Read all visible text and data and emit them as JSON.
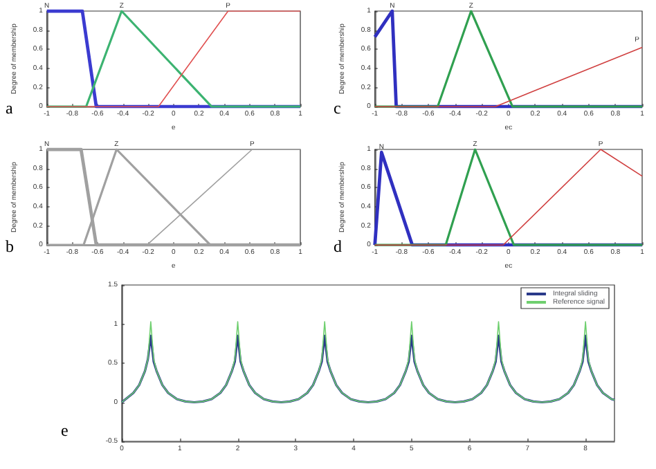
{
  "chart_data": [
    {
      "type": "line",
      "xlabel": "e",
      "ylabel": "Degree of membership",
      "annotations": [
        "a"
      ],
      "xlim": [
        -1,
        1
      ],
      "ylim": [
        0,
        1
      ],
      "xticks": [
        -1,
        -0.8,
        -0.6,
        -0.4,
        -0.2,
        0,
        0.2,
        0.4,
        0.6,
        0.8,
        1
      ],
      "yticks": [
        0,
        0.2,
        0.4,
        0.6,
        0.8,
        1
      ],
      "grid": false,
      "legend": false,
      "marker": "none",
      "line_style": "solid",
      "series": [
        {
          "name": "N",
          "color": "#3b3bd0",
          "x": [
            -1,
            -0.72,
            -0.61,
            1
          ],
          "values": [
            1,
            1,
            0,
            0
          ]
        },
        {
          "name": "Z",
          "color": "#3cb371",
          "x": [
            -1,
            -0.69,
            -0.41,
            0.3,
            1
          ],
          "values": [
            0,
            0,
            1,
            0,
            0
          ]
        },
        {
          "name": "P",
          "color": "#e05050",
          "x": [
            -1,
            -0.12,
            0.43,
            1
          ],
          "values": [
            0,
            0,
            1,
            1
          ]
        }
      ]
    },
    {
      "type": "line",
      "xlabel": "e",
      "ylabel": "Degree of membership",
      "annotations": [
        "b"
      ],
      "xlim": [
        -1,
        1
      ],
      "ylim": [
        0,
        1
      ],
      "xticks": [
        -1,
        -0.8,
        -0.6,
        -0.4,
        -0.2,
        0,
        0.2,
        0.4,
        0.6,
        0.8,
        1
      ],
      "yticks": [
        0,
        0.2,
        0.4,
        0.6,
        0.8,
        1
      ],
      "grid": false,
      "legend": false,
      "marker": "none",
      "line_style": "solid",
      "series": [
        {
          "name": "N",
          "color": "#a0a0a0",
          "x": [
            -1,
            -0.73,
            -0.61,
            1
          ],
          "values": [
            1,
            1,
            0,
            0
          ]
        },
        {
          "name": "Z",
          "color": "#a0a0a0",
          "x": [
            -1,
            -0.71,
            -0.45,
            0.29,
            1
          ],
          "values": [
            0,
            0,
            1,
            0,
            0
          ]
        },
        {
          "name": "P",
          "color": "#a0a0a0",
          "x": [
            -1,
            -0.21,
            0.62,
            1
          ],
          "values": [
            0,
            0,
            1,
            1
          ]
        }
      ]
    },
    {
      "type": "line",
      "xlabel": "ec",
      "ylabel": "Degree of membership",
      "annotations": [
        "c"
      ],
      "xlim": [
        -1,
        1
      ],
      "ylim": [
        0,
        1
      ],
      "xticks": [
        -1,
        -0.8,
        -0.6,
        -0.4,
        -0.2,
        0,
        0.2,
        0.4,
        0.6,
        0.8,
        1
      ],
      "yticks": [
        0,
        0.2,
        0.4,
        0.6,
        0.8,
        1
      ],
      "grid": false,
      "legend": false,
      "marker": "none",
      "line_style": "solid",
      "series": [
        {
          "name": "N",
          "color": "#3030c0",
          "x": [
            -1,
            -0.87,
            -0.84,
            1
          ],
          "values": [
            0.73,
            1,
            0,
            0
          ]
        },
        {
          "name": "Z",
          "color": "#30a050",
          "x": [
            -1,
            -0.53,
            -0.28,
            0.03,
            1
          ],
          "values": [
            0,
            0,
            1,
            0,
            0
          ]
        },
        {
          "name": "P",
          "color": "#d04040",
          "x": [
            -1,
            -0.1,
            1
          ],
          "values": [
            0,
            0,
            0.62
          ]
        }
      ]
    },
    {
      "type": "line",
      "xlabel": "ec",
      "ylabel": "Degree of membership",
      "annotations": [
        "d"
      ],
      "xlim": [
        -1,
        1
      ],
      "ylim": [
        0,
        1
      ],
      "xticks": [
        -1,
        -0.8,
        -0.6,
        -0.4,
        -0.2,
        0,
        0.2,
        0.4,
        0.6,
        0.8,
        1
      ],
      "yticks": [
        0,
        0.2,
        0.4,
        0.6,
        0.8,
        1
      ],
      "grid": false,
      "legend": false,
      "marker": "none",
      "line_style": "solid",
      "series": [
        {
          "name": "N",
          "color": "#3030c0",
          "x": [
            -1,
            -0.95,
            -0.72,
            1
          ],
          "values": [
            0,
            0.97,
            0,
            0
          ]
        },
        {
          "name": "Z",
          "color": "#30a050",
          "x": [
            -1,
            -0.47,
            -0.25,
            0.04,
            1
          ],
          "values": [
            0,
            0,
            1,
            0,
            0
          ]
        },
        {
          "name": "P",
          "color": "#d04040",
          "x": [
            -1,
            -0.04,
            0.69,
            1
          ],
          "values": [
            0,
            0,
            1,
            0.72
          ]
        }
      ]
    },
    {
      "type": "line",
      "annotations": [
        "e"
      ],
      "xlim": [
        0,
        8.5
      ],
      "ylim": [
        -0.5,
        1.5
      ],
      "xticks": [
        0,
        1,
        2,
        3,
        4,
        5,
        6,
        7,
        8
      ],
      "yticks": [
        -0.5,
        0,
        0.5,
        1,
        1.5
      ],
      "grid": false,
      "legend": "top right",
      "marker": "none",
      "line_style": "solid",
      "x": [
        0,
        0.2,
        0.3,
        0.4,
        0.45,
        0.5,
        0.55,
        0.6,
        0.7,
        0.8,
        0.95,
        1.1,
        1.25,
        1.4,
        1.55,
        1.7,
        1.8,
        1.9,
        1.95,
        2,
        2.05,
        2.1,
        2.2,
        2.3,
        2.45,
        2.6,
        2.75,
        2.9,
        3.05,
        3.2,
        3.3,
        3.4,
        3.45,
        3.5,
        3.55,
        3.6,
        3.7,
        3.8,
        3.95,
        4.1,
        4.25,
        4.4,
        4.55,
        4.7,
        4.8,
        4.9,
        4.95,
        5,
        5.05,
        5.1,
        5.2,
        5.3,
        5.45,
        5.6,
        5.75,
        5.9,
        6.05,
        6.2,
        6.3,
        6.4,
        6.45,
        6.5,
        6.55,
        6.6,
        6.7,
        6.8,
        6.95,
        7.1,
        7.25,
        7.4,
        7.55,
        7.7,
        7.8,
        7.9,
        7.95,
        8,
        8.05,
        8.1,
        8.2,
        8.3,
        8.45,
        8.5
      ],
      "series": [
        {
          "name": "Integral sliding",
          "color": "#2a3a8a",
          "values": [
            0,
            0.12,
            0.22,
            0.4,
            0.55,
            0.85,
            0.52,
            0.4,
            0.22,
            0.12,
            0.04,
            0.01,
            0,
            0.01,
            0.04,
            0.12,
            0.22,
            0.4,
            0.52,
            0.85,
            0.52,
            0.4,
            0.22,
            0.12,
            0.04,
            0.01,
            0,
            0.01,
            0.04,
            0.12,
            0.22,
            0.4,
            0.52,
            0.85,
            0.52,
            0.4,
            0.22,
            0.12,
            0.04,
            0.01,
            0,
            0.01,
            0.04,
            0.12,
            0.22,
            0.4,
            0.52,
            0.85,
            0.52,
            0.4,
            0.22,
            0.12,
            0.04,
            0.01,
            0,
            0.01,
            0.04,
            0.12,
            0.22,
            0.4,
            0.52,
            0.85,
            0.52,
            0.4,
            0.22,
            0.12,
            0.04,
            0.01,
            0,
            0.01,
            0.04,
            0.12,
            0.22,
            0.4,
            0.52,
            0.85,
            0.52,
            0.4,
            0.22,
            0.12,
            0.04,
            0.03
          ]
        },
        {
          "name": "Reference signal",
          "color": "#6fcf6f",
          "values": [
            0,
            0.12,
            0.22,
            0.4,
            0.55,
            1.03,
            0.55,
            0.4,
            0.22,
            0.12,
            0.04,
            0.01,
            0,
            0.01,
            0.04,
            0.12,
            0.22,
            0.4,
            0.55,
            1.03,
            0.55,
            0.4,
            0.22,
            0.12,
            0.04,
            0.01,
            0,
            0.01,
            0.04,
            0.12,
            0.22,
            0.4,
            0.55,
            1.03,
            0.55,
            0.4,
            0.22,
            0.12,
            0.04,
            0.01,
            0,
            0.01,
            0.04,
            0.12,
            0.22,
            0.4,
            0.55,
            1.03,
            0.55,
            0.4,
            0.22,
            0.12,
            0.04,
            0.01,
            0,
            0.01,
            0.04,
            0.12,
            0.22,
            0.4,
            0.55,
            1.03,
            0.55,
            0.4,
            0.22,
            0.12,
            0.04,
            0.01,
            0,
            0.01,
            0.04,
            0.12,
            0.22,
            0.4,
            0.55,
            1.03,
            0.55,
            0.4,
            0.22,
            0.12,
            0.04,
            0.03
          ]
        }
      ]
    }
  ]
}
